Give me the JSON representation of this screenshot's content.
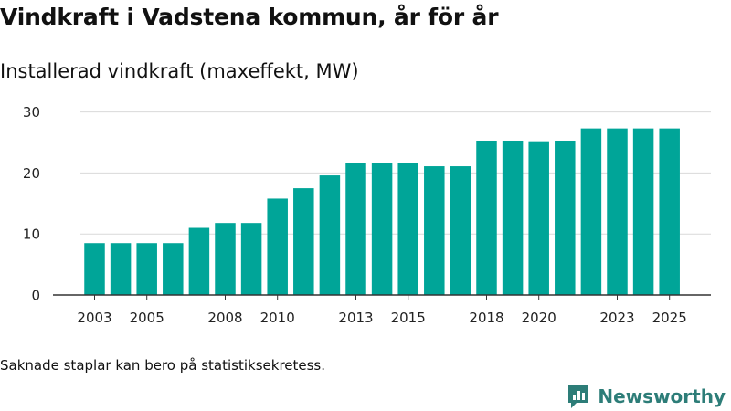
{
  "title": "Vindkraft i Vadstena kommun, år för år",
  "subtitle": "Installerad vindkraft (maxeffekt, MW)",
  "footnote": "Saknade staplar kan bero på statistiksekretess.",
  "brand": {
    "name": "Newsworthy",
    "color": "#2d7d78",
    "logo_icon": "newsworthy-chart-icon"
  },
  "colors": {
    "bar": "#00a598",
    "grid": "#d9d9d9",
    "axis": "#333333",
    "text": "#222222"
  },
  "chart_data": {
    "type": "bar",
    "title": "Installerad vindkraft (maxeffekt, MW)",
    "xlabel": "",
    "ylabel": "MW",
    "ylim": [
      0,
      32
    ],
    "yticks": [
      0,
      10,
      20,
      30
    ],
    "xtick_labels": [
      "2003",
      "2005",
      "2008",
      "2010",
      "2013",
      "2015",
      "2018",
      "2020",
      "2023",
      "2025"
    ],
    "grid": true,
    "categories": [
      "2003",
      "2004",
      "2005",
      "2006",
      "2007",
      "2008",
      "2009",
      "2010",
      "2011",
      "2012",
      "2013",
      "2014",
      "2015",
      "2016",
      "2017",
      "2018",
      "2019",
      "2020",
      "2021",
      "2022",
      "2023",
      "2024",
      "2025"
    ],
    "values": [
      8.5,
      8.5,
      8.5,
      8.5,
      11.0,
      11.8,
      11.8,
      15.8,
      17.5,
      19.6,
      21.6,
      21.6,
      21.6,
      21.1,
      21.1,
      25.3,
      25.3,
      25.2,
      25.3,
      27.3,
      27.3,
      27.3,
      27.3
    ]
  }
}
